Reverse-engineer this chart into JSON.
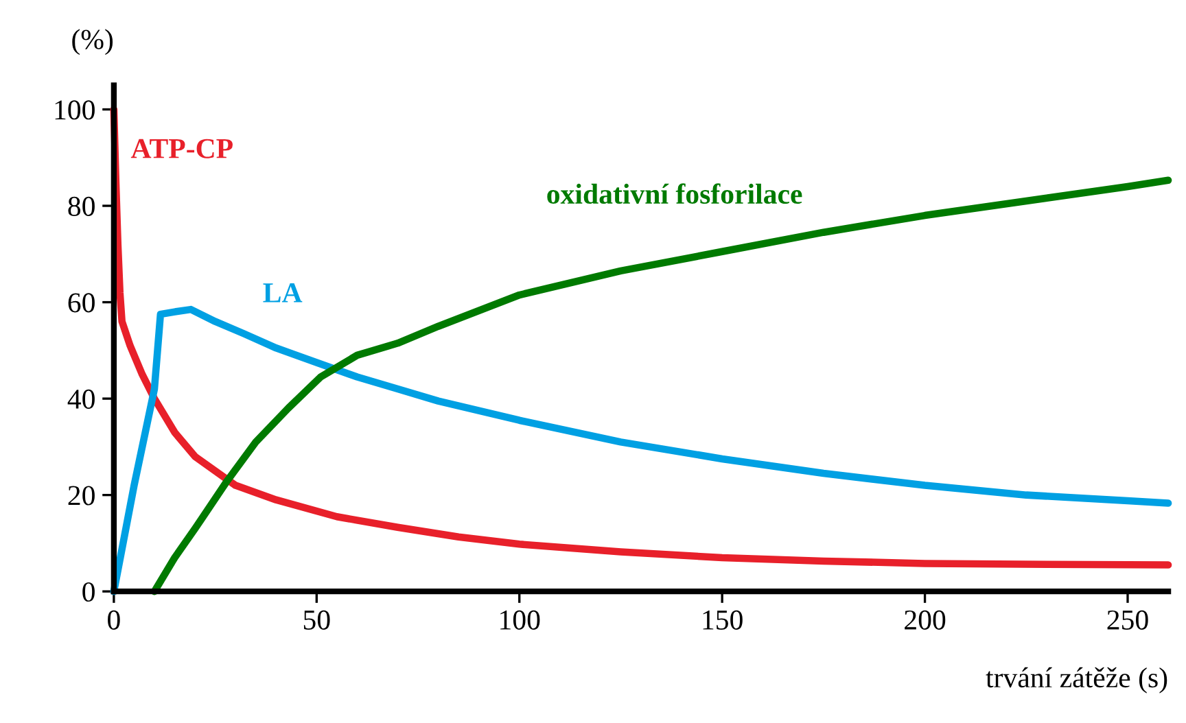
{
  "chart_data": {
    "type": "line",
    "xlabel": "trvání zátěže (s)",
    "ylabel": "(%)",
    "xlim": [
      0,
      260
    ],
    "ylim": [
      0,
      105
    ],
    "xticks": [
      0,
      50,
      100,
      150,
      200,
      250
    ],
    "yticks": [
      0,
      20,
      40,
      60,
      80,
      100
    ],
    "grid": false,
    "legend": false,
    "marker": "none",
    "line_style": "solid",
    "series": [
      {
        "name": "ATP-CP",
        "color": "#e8202a",
        "x": [
          0,
          0.5,
          1,
          1.5,
          2,
          4,
          7,
          10,
          15,
          20,
          30,
          40,
          55,
          70,
          85,
          100,
          125,
          150,
          175,
          200,
          230,
          260
        ],
        "values": [
          100,
          85,
          72,
          62,
          56,
          51,
          45,
          40,
          33,
          28,
          22,
          19,
          15.5,
          13.3,
          11.3,
          9.8,
          8.2,
          7,
          6.3,
          5.8,
          5.6,
          5.5
        ]
      },
      {
        "name": "LA",
        "color": "#00a0e3",
        "x": [
          0,
          5,
          10,
          11.5,
          15,
          19,
          25,
          32,
          40,
          50,
          60,
          70,
          80,
          100,
          125,
          150,
          175,
          200,
          225,
          250,
          260
        ],
        "values": [
          0,
          22,
          42,
          57.5,
          58,
          58.5,
          56,
          53.5,
          50.5,
          47.5,
          44.5,
          42,
          39.5,
          35.5,
          31,
          27.5,
          24.5,
          22,
          20,
          18.8,
          18.3
        ]
      },
      {
        "name": "oxidativní fosforilace",
        "color": "#007a00",
        "x": [
          10,
          15,
          20,
          28,
          35,
          43,
          51,
          60,
          70,
          80,
          100,
          125,
          150,
          175,
          200,
          225,
          250,
          260
        ],
        "values": [
          0,
          7,
          13,
          23,
          31,
          38,
          44.5,
          49,
          51.5,
          55,
          61.5,
          66.5,
          70.5,
          74.5,
          78,
          81,
          84,
          85.3
        ]
      }
    ]
  }
}
